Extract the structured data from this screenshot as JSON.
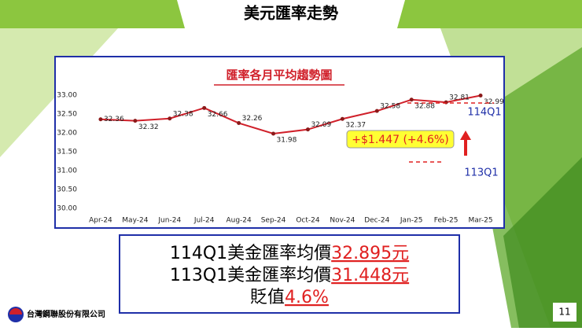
{
  "slide_title": "美元匯率走勢",
  "chart_data": {
    "type": "line",
    "title": "匯率各月平均趨勢圖",
    "categories": [
      "Apr-24",
      "May-24",
      "Jun-24",
      "Jul-24",
      "Aug-24",
      "Sep-24",
      "Oct-24",
      "Nov-24",
      "Dec-24",
      "Jan-25",
      "Feb-25",
      "Mar-25"
    ],
    "values": [
      32.36,
      32.32,
      32.38,
      32.66,
      32.26,
      31.98,
      32.09,
      32.37,
      32.58,
      32.88,
      32.81,
      32.99
    ],
    "color": "#d0202a",
    "ylim": [
      30,
      33
    ],
    "yticks": [
      {
        "value": 30,
        "label": "30.00"
      },
      {
        "value": 30.5,
        "label": "30.50"
      },
      {
        "value": 31,
        "label": "31.00"
      },
      {
        "value": 31.5,
        "label": "31.50"
      },
      {
        "value": 32,
        "label": "32.00"
      },
      {
        "value": 32.5,
        "label": "32.50"
      },
      {
        "value": 33,
        "label": "33.00"
      }
    ],
    "grid": false,
    "annotations": {
      "change": "+$1.447 (+4.6%)",
      "current": "114Q1",
      "previous": "113Q1"
    }
  },
  "summary": [
    {
      "text": "114Q1美金匯率均價",
      "highlight": "32.895元"
    },
    {
      "text": "113Q1美金匯率均價",
      "highlight": "31.448元"
    },
    {
      "text": "貶值",
      "highlight": "4.6%"
    }
  ],
  "company": "台灣鋼聯股份有限公司",
  "page_number": "11"
}
